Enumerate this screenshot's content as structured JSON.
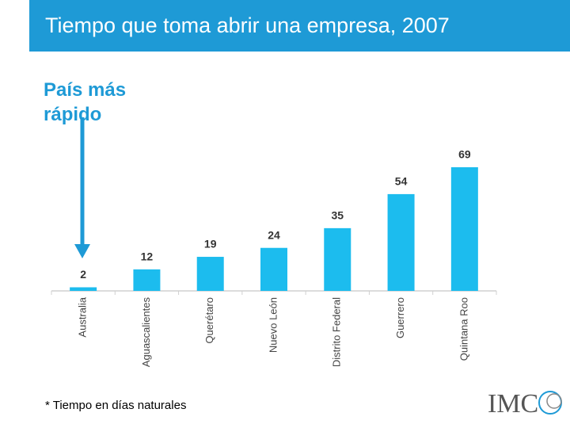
{
  "header": {
    "title": "Tiempo que toma abrir una empresa, 2007"
  },
  "annotation": "País más rápido",
  "footnote": "* Tiempo en días naturales",
  "logo": "IMC",
  "chart_data": {
    "type": "bar",
    "categories": [
      "Australia",
      "Aguascalientes",
      "Querétaro",
      "Nuevo León",
      "Distrito Federal",
      "Guerrero",
      "Quintana Roo"
    ],
    "values": [
      2,
      12,
      19,
      24,
      35,
      54,
      69
    ],
    "color": "#1cbcee"
  }
}
